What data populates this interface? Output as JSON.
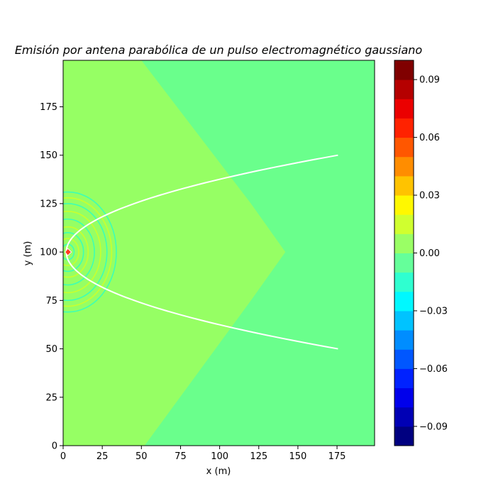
{
  "chart_data": {
    "type": "heatmap",
    "title": "Emisión por antena parabólica de un pulso electromagnético gaussiano",
    "xlabel": "x (m)",
    "ylabel": "y (m)",
    "xlim": [
      0,
      199
    ],
    "ylim": [
      0,
      199
    ],
    "x_ticks": [
      0,
      25,
      50,
      75,
      100,
      125,
      150,
      175
    ],
    "y_ticks": [
      0,
      25,
      50,
      75,
      100,
      125,
      150,
      175
    ],
    "colormap": "jet",
    "levels": [
      -0.1,
      -0.09,
      -0.08,
      -0.07,
      -0.06,
      -0.05,
      -0.04,
      -0.03,
      -0.02,
      -0.01,
      0.0,
      0.01,
      0.02,
      0.03,
      0.04,
      0.05,
      0.06,
      0.07,
      0.08,
      0.09,
      0.1
    ],
    "colorbar_ticks": [
      -0.09,
      -0.06,
      -0.03,
      0.0,
      0.03,
      0.06,
      0.09
    ],
    "colorbar_tick_labels": [
      "−0.09",
      "−0.06",
      "−0.03",
      "0.00",
      "0.03",
      "0.06",
      "0.09"
    ],
    "regions": {
      "inner_value_range": [
        0.0,
        0.01
      ],
      "outer_value_range": [
        -0.01,
        0.0
      ],
      "wavefront_boundary": [
        {
          "x": 50,
          "y": 199
        },
        {
          "x": 120,
          "y": 125
        },
        {
          "x": 142,
          "y": 100
        },
        {
          "x": 120,
          "y": 75
        },
        {
          "x": 52,
          "y": 0
        }
      ]
    },
    "parabola": {
      "color": "#ffffff",
      "vertex": {
        "x": 2,
        "y": 100
      },
      "equation": "x = 2 + (y - 100)^2 / 14.4",
      "y_range": [
        50,
        150
      ]
    },
    "source": {
      "x": 3,
      "y": 100
    },
    "ripple_radii": [
      4,
      7,
      10,
      13,
      17,
      21,
      25,
      28,
      31
    ]
  },
  "colors": {
    "inner_region": "#96ff64",
    "outer_region": "#6aff8c",
    "curve": "#ffffff",
    "ripple_outer": "#3dffb5",
    "ripple_inner": "#c9ff2e"
  }
}
